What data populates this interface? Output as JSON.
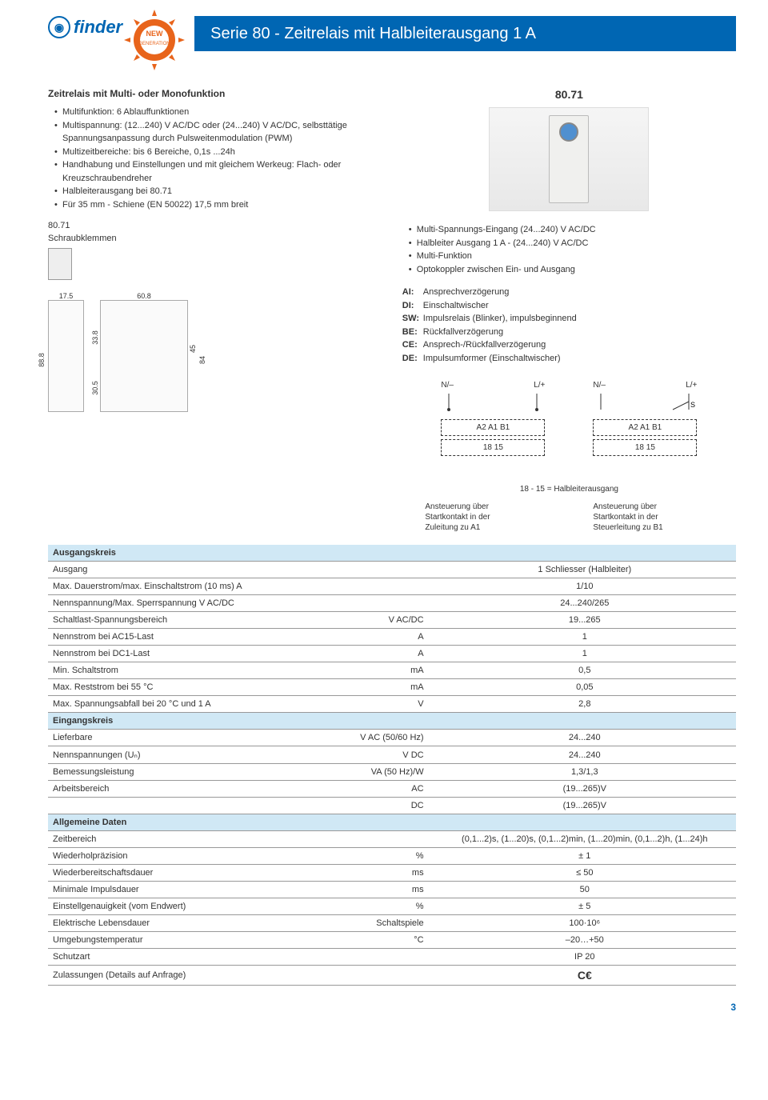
{
  "header": {
    "brand": "finder",
    "title": "Serie 80 - Zeitrelais mit Halbleiterausgang 1 A"
  },
  "model": "80.71",
  "left": {
    "section_title": "Zeitrelais mit Multi- oder Monofunktion",
    "bullets": [
      "Multifunktion: 6 Ablauffunktionen",
      "Multispannung: (12...240) V AC/DC oder (24...240) V AC/DC, selbsttätige Spannungsanpassung durch Pulsweitenmodulation (PWM)",
      "Multizeitbereiche: bis 6 Bereiche, 0,1s ...24h",
      "Handhabung und Einstellungen und mit gleichem Werkeug: Flach- oder Kreuzschraubendreher",
      "Halbleiterausgang bei 80.71",
      "Für 35 mm - Schiene (EN 50022) 17,5 mm breit"
    ],
    "sub_model": "80.71",
    "sub_label": "Schraubklemmen",
    "dims": {
      "w1": "17.5",
      "w2": "60.8",
      "h1": "88.8",
      "h2": "33.8",
      "h3": "30.5",
      "h4": "45",
      "h5": "84"
    }
  },
  "right": {
    "bullets": [
      "Multi-Spannungs-Eingang (24...240) V AC/DC",
      "Halbleiter Ausgang 1 A - (24...240) V AC/DC",
      "Multi-Funktion",
      "Optokoppler zwischen Ein- und Ausgang"
    ],
    "functions": [
      {
        "code": "AI:",
        "desc": "Ansprechverzögerung"
      },
      {
        "code": "DI:",
        "desc": "Einschaltwischer"
      },
      {
        "code": "SW:",
        "desc": "Impulsrelais (Blinker), impulsbeginnend"
      },
      {
        "code": "BE:",
        "desc": "Rückfallverzögerung"
      },
      {
        "code": "CE:",
        "desc": "Ansprech-/Rückfallverzögerung"
      },
      {
        "code": "DE:",
        "desc": "Impulsumformer (Einschaltwischer)"
      }
    ],
    "wiring": {
      "top_left": "N/–",
      "top_right": "L/+",
      "mid": "A2   A1   B1",
      "bot": "18   15",
      "s_label": "S",
      "output_note": "18 - 15 = Halbleiterausgang",
      "caption1_l1": "Ansteuerung über",
      "caption1_l2": "Startkontakt in der",
      "caption1_l3": "Zuleitung zu A1",
      "caption2_l1": "Ansteuerung über",
      "caption2_l2": "Startkontakt in der",
      "caption2_l3": "Steuerleitung zu B1"
    }
  },
  "table": {
    "sections": {
      "ausgangskreis": "Ausgangskreis",
      "eingangskreis": "Eingangskreis",
      "allgemeine": "Allgemeine Daten"
    },
    "rows": [
      {
        "label": "Ausgang",
        "unit": "",
        "value": "1 Schliesser (Halbleiter)"
      },
      {
        "label": "Max. Dauerstrom/max. Einschaltstrom (10 ms) A",
        "unit": "",
        "value": "1/10"
      },
      {
        "label": "Nennspannung/Max. Sperrspannung  V AC/DC",
        "unit": "",
        "value": "24...240/265"
      },
      {
        "label": "Schaltlast-Spannungsbereich",
        "unit": "V AC/DC",
        "value": "19...265"
      },
      {
        "label": "Nennstrom bei AC15-Last",
        "unit": "A",
        "value": "1"
      },
      {
        "label": "Nennstrom bei DC1-Last",
        "unit": "A",
        "value": "1"
      },
      {
        "label": "Min. Schaltstrom",
        "unit": "mA",
        "value": "0,5"
      },
      {
        "label": "Max. Reststrom bei 55 °C",
        "unit": "mA",
        "value": "0,05"
      },
      {
        "label": "Max. Spannungsabfall bei 20 °C und 1 A",
        "unit": "V",
        "value": "2,8"
      }
    ],
    "rows_eingang": [
      {
        "label": "Lieferbare",
        "unit": "V AC (50/60 Hz)",
        "value": "24...240"
      },
      {
        "label": "Nennspannungen (Uₙ)",
        "unit": "V DC",
        "value": "24...240"
      },
      {
        "label": "Bemessungsleistung",
        "unit": "VA (50 Hz)/W",
        "value": "1,3/1,3"
      },
      {
        "label": "Arbeitsbereich",
        "unit": "AC",
        "value": "(19...265)V"
      },
      {
        "label": "",
        "unit": "DC",
        "value": "(19...265)V"
      }
    ],
    "rows_allgemein": [
      {
        "label": "Zeitbereich",
        "unit": "",
        "value": "(0,1...2)s, (1...20)s, (0,1...2)min, (1...20)min, (0,1...2)h, (1...24)h"
      },
      {
        "label": "Wiederholpräzision",
        "unit": "%",
        "value": "± 1"
      },
      {
        "label": "Wiederbereitschaftsdauer",
        "unit": "ms",
        "value": "≤ 50"
      },
      {
        "label": "Minimale Impulsdauer",
        "unit": "ms",
        "value": "50"
      },
      {
        "label": "Einstellgenauigkeit (vom Endwert)",
        "unit": "%",
        "value": "± 5"
      },
      {
        "label": "Elektrische Lebensdauer",
        "unit": "Schaltspiele",
        "value": "100·10⁶"
      },
      {
        "label": "Umgebungstemperatur",
        "unit": "°C",
        "value": "–20…+50"
      },
      {
        "label": "Schutzart",
        "unit": "",
        "value": "IP 20"
      },
      {
        "label": "Zulassungen (Details auf Anfrage)",
        "unit": "",
        "value": "CE"
      }
    ]
  },
  "page": "3"
}
